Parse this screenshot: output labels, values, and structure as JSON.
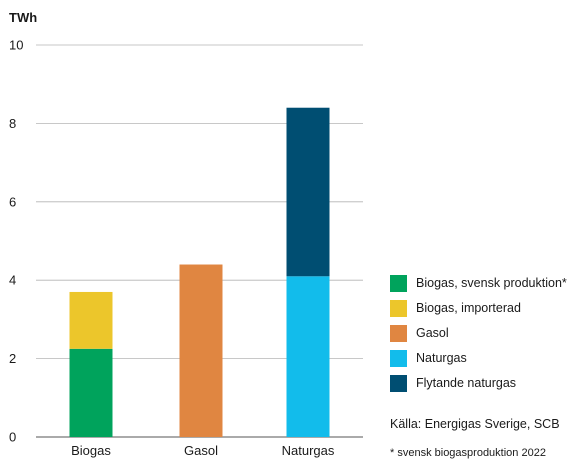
{
  "chart_data": {
    "type": "bar",
    "stacked": true,
    "ylabel": "TWh",
    "ylim": [
      0,
      10
    ],
    "yticks": [
      0,
      2,
      4,
      6,
      8,
      10
    ],
    "grid": true,
    "legend_position": "right",
    "categories": [
      "Biogas",
      "Gasol",
      "Naturgas"
    ],
    "series": [
      {
        "name": "Biogas, svensk produktion*",
        "color": "#00a35c",
        "values": [
          2.25,
          0,
          0
        ]
      },
      {
        "name": "Biogas, importerad",
        "color": "#ecc62b",
        "values": [
          1.45,
          0,
          0
        ]
      },
      {
        "name": "Gasol",
        "color": "#e08641",
        "values": [
          0,
          4.4,
          0
        ]
      },
      {
        "name": "Naturgas",
        "color": "#12bceb",
        "values": [
          0,
          0,
          4.1
        ]
      },
      {
        "name": "Flytande naturgas",
        "color": "#004e72",
        "values": [
          0,
          0,
          4.3
        ]
      }
    ]
  },
  "source": "Källa: Energigas Sverige, SCB",
  "footnote": "* svensk biogasproduktion 2022"
}
